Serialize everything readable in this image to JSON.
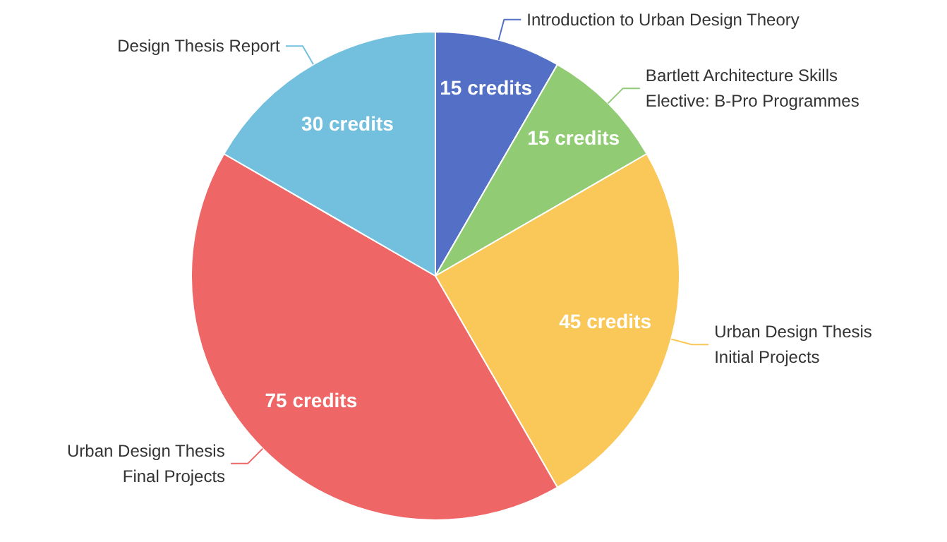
{
  "chart_data": {
    "type": "pie",
    "categories": [
      "Introduction to Urban Design Theory",
      "Bartlett Architecture Skills\nElective: B-Pro Programmes",
      "Urban Design Thesis\nInitial Projects",
      "Urban Design Thesis\nFinal Projects",
      "Design Thesis Report"
    ],
    "values": [
      15,
      15,
      45,
      75,
      30
    ],
    "colors": [
      "#5470c6",
      "#91cc75",
      "#fac858",
      "#ee6666",
      "#73c0de"
    ],
    "value_labels": [
      "15 credits",
      "15 credits",
      "45 credits",
      "75 credits",
      "30 credits"
    ]
  }
}
